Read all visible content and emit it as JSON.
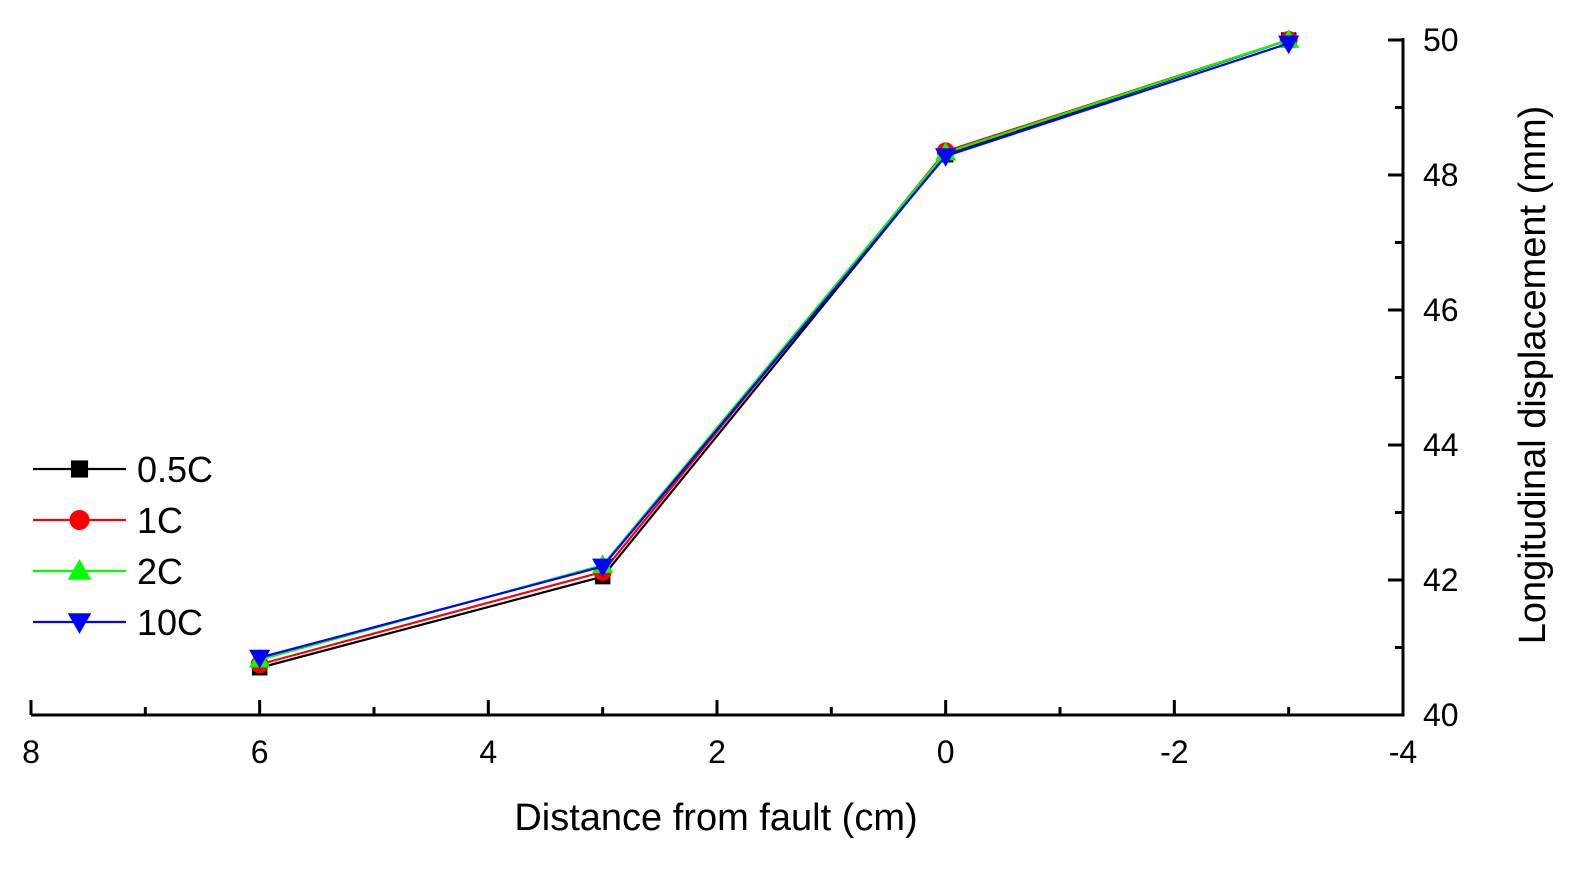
{
  "chart_data": {
    "type": "line",
    "title": "",
    "xlabel": "Distance from fault (cm)",
    "ylabel": "Longitudinal displacement (mm)",
    "x": [
      6,
      3,
      0,
      -3
    ],
    "xlim": [
      8,
      -4
    ],
    "ylim": [
      40,
      50
    ],
    "x_reversed": true,
    "y_axis_side": "right",
    "grid": false,
    "x_major_ticks": [
      8,
      6,
      4,
      2,
      0,
      -2,
      -4
    ],
    "x_tick_labels": [
      "8",
      "6",
      "4",
      "2",
      "0",
      "-2",
      "-4"
    ],
    "x_minor_ticks": [
      7,
      5,
      3,
      1,
      -1,
      -3
    ],
    "y_major_ticks": [
      40,
      42,
      44,
      46,
      48,
      50
    ],
    "y_tick_labels": [
      "40",
      "42",
      "44",
      "46",
      "48",
      "50"
    ],
    "y_minor_ticks": [
      41,
      43,
      45,
      47,
      49
    ],
    "legend_position": "lower-left",
    "series": [
      {
        "name": "0.5C",
        "color": "#000000",
        "marker": "square",
        "values": [
          40.7,
          42.05,
          48.3,
          50.0
        ]
      },
      {
        "name": "1C",
        "color": "#ff0000",
        "marker": "circle",
        "values": [
          40.75,
          42.12,
          48.35,
          50.0
        ]
      },
      {
        "name": "2C",
        "color": "#00ff00",
        "marker": "triangle-up",
        "values": [
          40.82,
          42.22,
          48.33,
          50.0
        ]
      },
      {
        "name": "10C",
        "color": "#0000ff",
        "marker": "triangle-down",
        "values": [
          40.85,
          42.2,
          48.28,
          49.95
        ]
      }
    ]
  }
}
